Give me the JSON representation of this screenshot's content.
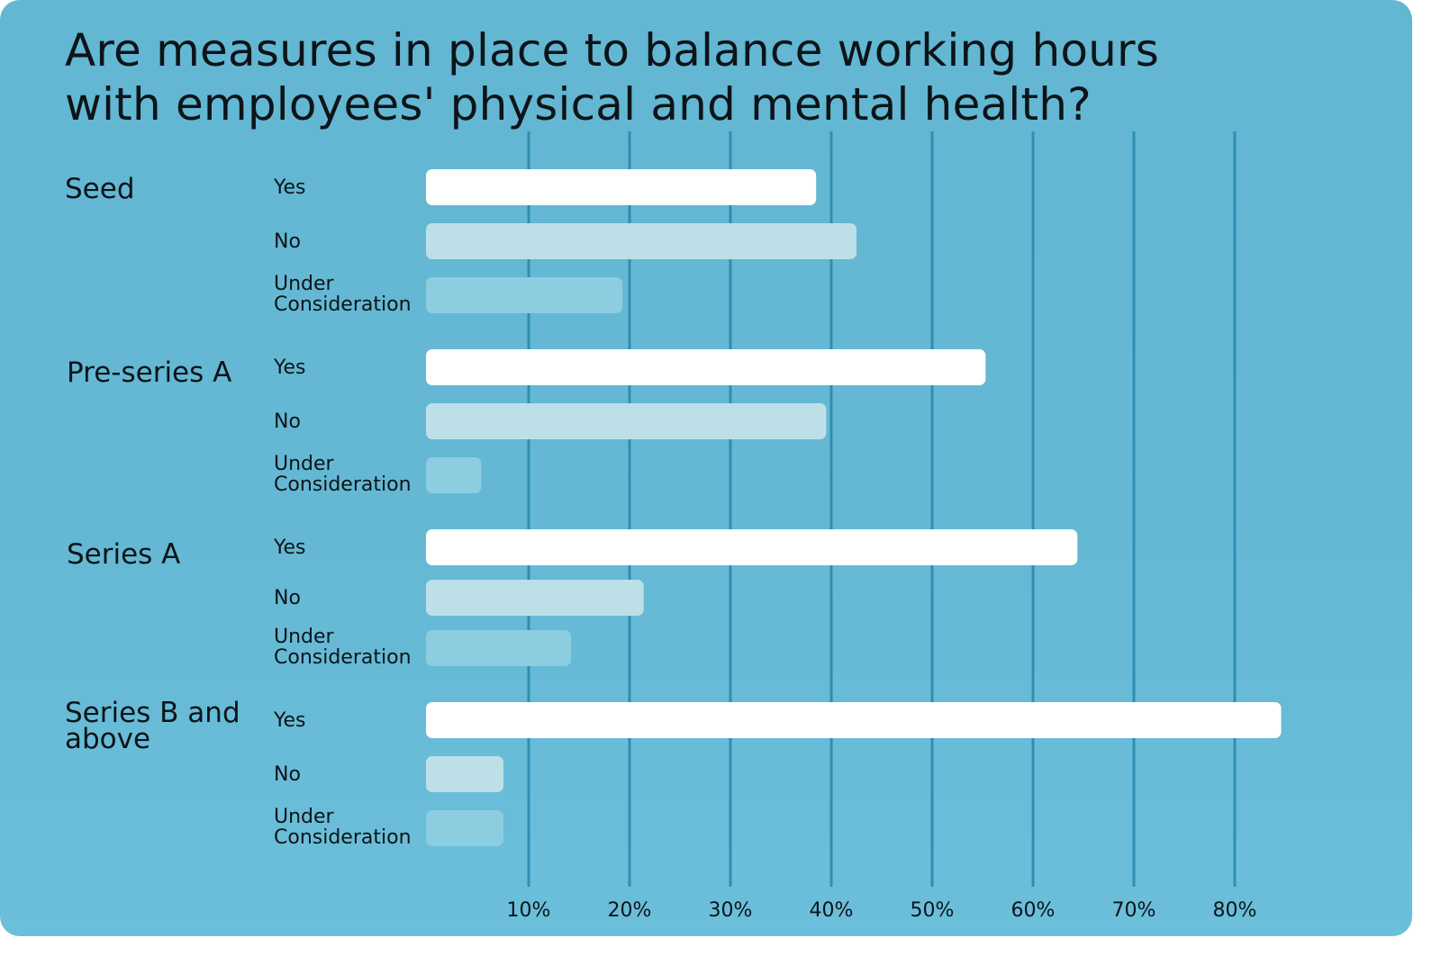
{
  "title": "Are measures in place to balance working hours with employees' physical and mental health?",
  "colors": {
    "background": "#64b8d4",
    "grid": "#2f8fb1",
    "yes": "#ffffff",
    "no": "#bde0e8",
    "under_consideration": "#8ccde0",
    "text": "#0d1418"
  },
  "chart_data": {
    "type": "bar",
    "orientation": "horizontal",
    "title": "Are measures in place to balance working hours with employees' physical and mental health?",
    "xlabel": "",
    "ylabel": "",
    "xlim": [
      0,
      85
    ],
    "x_ticks": [
      "10%",
      "20%",
      "30%",
      "40%",
      "50%",
      "60%",
      "70%",
      "80%"
    ],
    "grid": true,
    "groups": [
      {
        "name": "Seed",
        "bars": [
          {
            "label": "Yes",
            "value": 38.5
          },
          {
            "label": "No",
            "value": 42.5
          },
          {
            "label": "Under Consideration",
            "value": 19.3
          }
        ]
      },
      {
        "name": "Pre-series A",
        "bars": [
          {
            "label": "Yes",
            "value": 55.3
          },
          {
            "label": "No",
            "value": 39.5
          },
          {
            "label": "Under Consideration",
            "value": 5.3
          }
        ]
      },
      {
        "name": "Series A",
        "bars": [
          {
            "label": "Yes",
            "value": 64.4
          },
          {
            "label": "No",
            "value": 21.4
          },
          {
            "label": "Under Consideration",
            "value": 14.2
          }
        ]
      },
      {
        "name": "Series B and above",
        "bars": [
          {
            "label": "Yes",
            "value": 84.6
          },
          {
            "label": "No",
            "value": 7.5
          },
          {
            "label": "Under Consideration",
            "value": 7.5
          }
        ]
      }
    ]
  }
}
